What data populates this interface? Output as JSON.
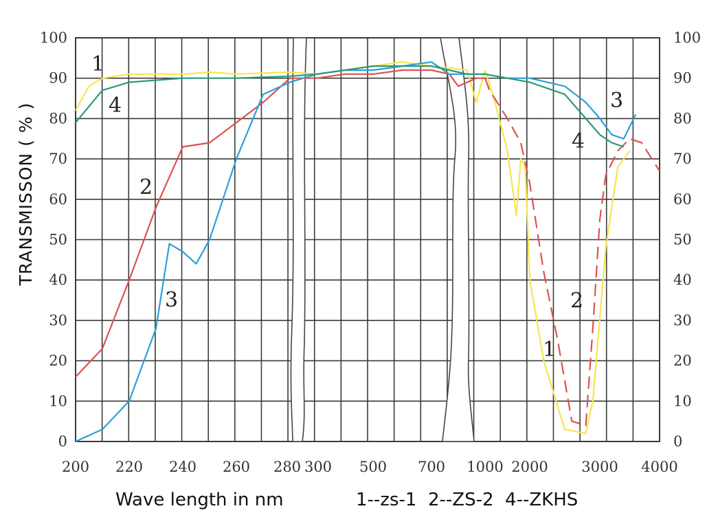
{
  "chart_data": {
    "type": "line",
    "ylabel": "TRANSMISSON ( % )",
    "xlabel": "Wave length in nm",
    "legend": "1--zs-1  2--ZS-2  4--ZKHS",
    "x_tick_labels": [
      "200",
      "220",
      "240",
      "260",
      "280",
      "300",
      "500",
      "700",
      "1000",
      "2000",
      "3000",
      "4000"
    ],
    "y_ticks": [
      0,
      10,
      20,
      30,
      40,
      50,
      60,
      70,
      80,
      90,
      100
    ],
    "ylim": [
      0,
      100
    ],
    "grid": true,
    "curve_labels": {
      "c1a": "1",
      "c4a": "4",
      "c2a": "2",
      "c3a": "3",
      "c3b": "3",
      "c4b": "4",
      "c2b": "2",
      "c1b": "1"
    },
    "series": [
      {
        "name": "1",
        "color": "#f5e64e",
        "dash_from_x": 1000,
        "x": [
          200,
          205,
          210,
          220,
          240,
          250,
          260,
          280,
          300,
          400,
          500,
          600,
          700,
          900,
          950,
          1000,
          1200,
          1500,
          1700,
          1800,
          1900,
          2000,
          2200,
          2500,
          2800,
          2900,
          3100,
          3300,
          3500
        ],
        "y": [
          82,
          88,
          90,
          91,
          91,
          91.5,
          91,
          91.5,
          91,
          92,
          93,
          94,
          93,
          92,
          84,
          92,
          85,
          72,
          56,
          70,
          68,
          40,
          20,
          3,
          2,
          10,
          48,
          68,
          72
        ]
      },
      {
        "name": "2",
        "color": "#e05050",
        "dash_from_x": 1000,
        "x": [
          200,
          210,
          220,
          230,
          240,
          250,
          260,
          270,
          280,
          300,
          400,
          500,
          600,
          700,
          800,
          850,
          900,
          950,
          1000,
          1100,
          1500,
          1800,
          2000,
          2200,
          2400,
          2600,
          2800,
          2900,
          3000,
          3100,
          3300,
          3500,
          3700,
          4000
        ],
        "y": [
          16,
          23,
          40,
          58,
          73,
          74,
          79,
          84,
          90,
          90,
          91,
          91,
          92,
          92,
          91,
          88,
          89,
          90,
          90,
          87,
          80,
          74,
          64,
          42,
          25,
          5,
          4,
          28,
          55,
          66,
          72,
          75,
          74,
          67
        ],
        "note": "segment from 1000 nm onward drawn dashed"
      },
      {
        "name": "3",
        "color": "#2aa0d8",
        "x": [
          200,
          210,
          220,
          230,
          235,
          240,
          245,
          250,
          260,
          270,
          280,
          300,
          400,
          500,
          600,
          700,
          800,
          900,
          1000,
          1500,
          2000,
          2500,
          2800,
          3000,
          3200,
          3400,
          3600
        ],
        "y": [
          0,
          3,
          10,
          28,
          49,
          47,
          44,
          50,
          70,
          86,
          89,
          91,
          92,
          92,
          93,
          94,
          91,
          91,
          91,
          90,
          90,
          88,
          84,
          80,
          76,
          75,
          81
        ]
      },
      {
        "name": "4",
        "color": "#2a9a7a",
        "x": [
          200,
          210,
          220,
          240,
          260,
          280,
          300,
          400,
          500,
          600,
          700,
          800,
          900,
          1000,
          1500,
          2000,
          2500,
          2800,
          3000,
          3200,
          3400
        ],
        "y": [
          79,
          87,
          89,
          90,
          90,
          90.5,
          91,
          92,
          93,
          93,
          93,
          92,
          91,
          91,
          90,
          89,
          86,
          80,
          76,
          74,
          73
        ]
      }
    ]
  }
}
